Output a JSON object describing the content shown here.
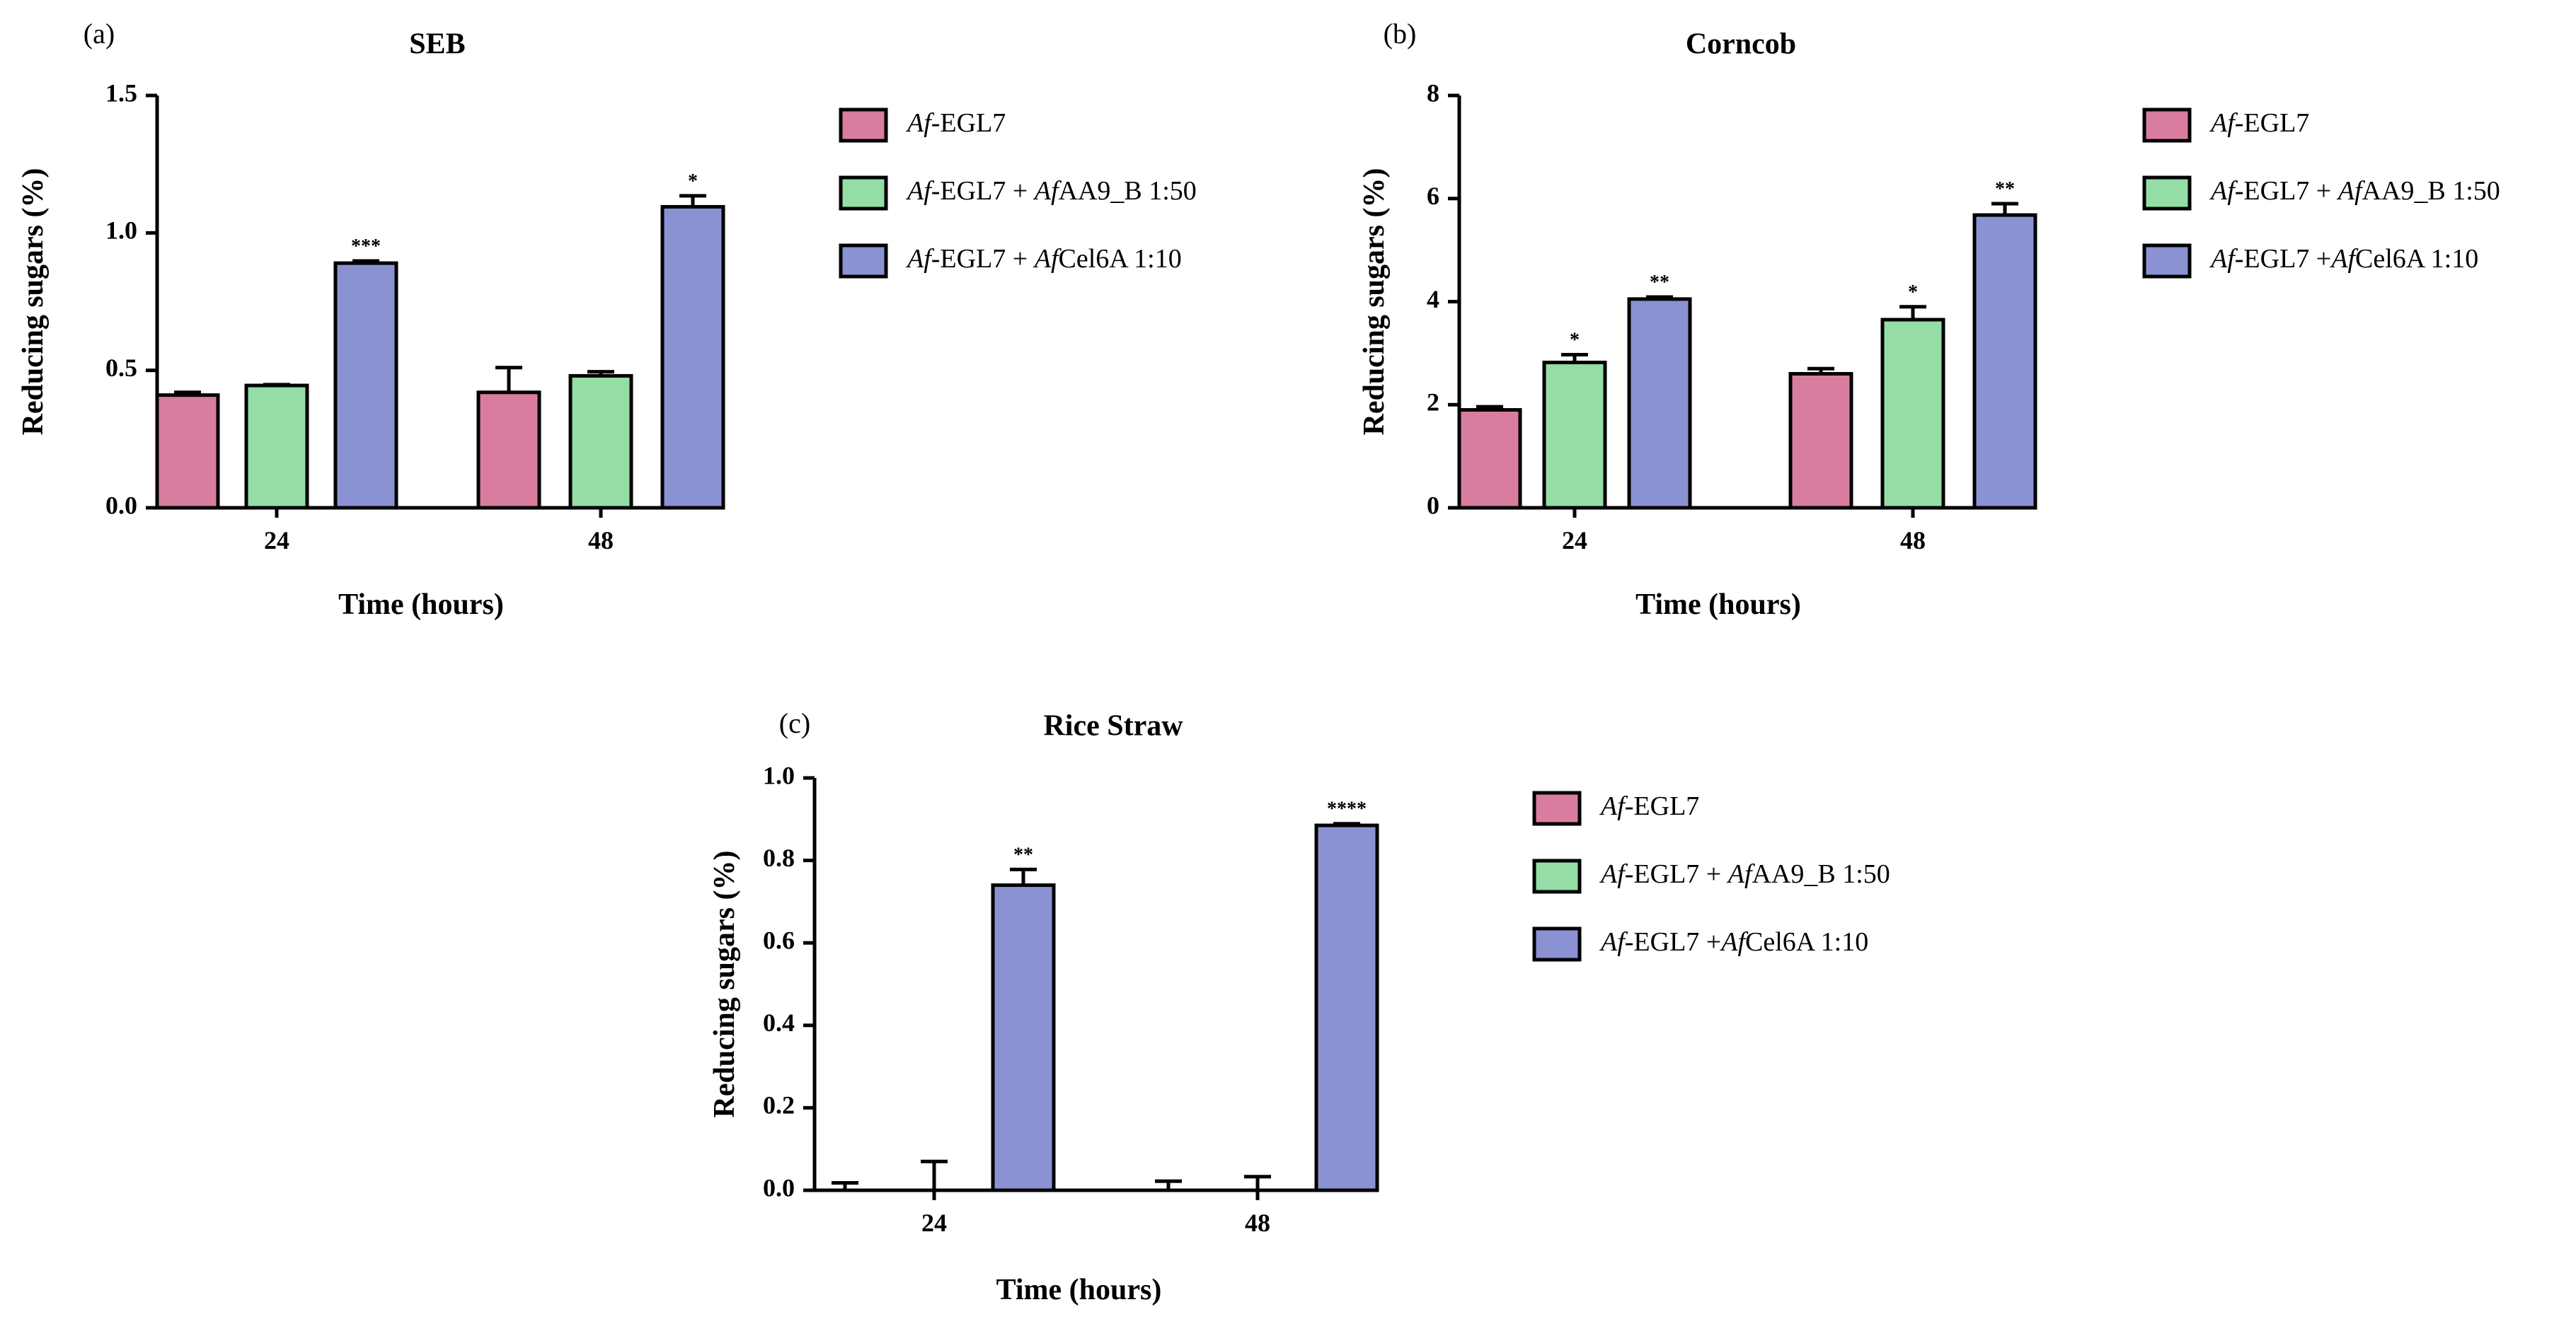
{
  "colors": {
    "egl7": "#D87D9F",
    "aa9": "#94DDA6",
    "cel6a": "#8A92D3",
    "axis": "#000000"
  },
  "chart_data": [
    {
      "panel": "(a)",
      "type": "bar",
      "title": "SEB",
      "xlabel": "Time (hours)",
      "ylabel": "Reducing sugars (%)",
      "categories": [
        "24",
        "48"
      ],
      "ylim": [
        0,
        1.5
      ],
      "yticks": [
        0.0,
        0.5,
        1.0,
        1.5
      ],
      "ytick_labels": [
        "0.0",
        "0.5",
        "1.0",
        "1.5"
      ],
      "series": [
        {
          "name": "Af-EGL7",
          "color_key": "egl7",
          "values": [
            0.41,
            0.42
          ],
          "errors": [
            0.01,
            0.09
          ],
          "sig": [
            "",
            ""
          ]
        },
        {
          "name": "Af-EGL7 + AfAA9_B 1:50",
          "color_key": "aa9",
          "values": [
            0.445,
            0.48
          ],
          "errors": [
            0.003,
            0.015
          ],
          "sig": [
            "",
            ""
          ]
        },
        {
          "name": "Af-EGL7 + AfCel6A 1:10",
          "color_key": "cel6a",
          "values": [
            0.89,
            1.095
          ],
          "errors": [
            0.008,
            0.04
          ],
          "sig": [
            "***",
            "*"
          ]
        }
      ],
      "legend": [
        {
          "italic": "Af",
          "text": "-EGL7"
        },
        {
          "italic": "Af",
          "text": "-EGL7 + ",
          "italic2": "Af",
          "text2": "AA9_B 1:50"
        },
        {
          "italic": "Af",
          "text": "-EGL7 + ",
          "italic2": "Af",
          "text2": "Cel6A 1:10"
        }
      ]
    },
    {
      "panel": "(b)",
      "type": "bar",
      "title": "Corncob",
      "xlabel": "Time (hours)",
      "ylabel": "Reducing sugars (%)",
      "categories": [
        "24",
        "48"
      ],
      "ylim": [
        0,
        8
      ],
      "yticks": [
        0,
        2,
        4,
        6,
        8
      ],
      "ytick_labels": [
        "0",
        "2",
        "4",
        "6",
        "8"
      ],
      "series": [
        {
          "name": "Af-EGL7",
          "color_key": "egl7",
          "values": [
            1.9,
            2.6
          ],
          "errors": [
            0.06,
            0.1
          ],
          "sig": [
            "",
            ""
          ]
        },
        {
          "name": "Af-EGL7 + AfAA9_B 1:50",
          "color_key": "aa9",
          "values": [
            2.82,
            3.65
          ],
          "errors": [
            0.15,
            0.25
          ],
          "sig": [
            "*",
            "*"
          ]
        },
        {
          "name": "Af-EGL7 +AfCel6A 1:10",
          "color_key": "cel6a",
          "values": [
            4.05,
            5.68
          ],
          "errors": [
            0.04,
            0.22
          ],
          "sig": [
            "**",
            "**"
          ]
        }
      ],
      "legend": [
        {
          "italic": "Af",
          "text": "-EGL7"
        },
        {
          "italic": "Af",
          "text": "-EGL7 + ",
          "italic2": "Af",
          "text2": "AA9_B 1:50"
        },
        {
          "italic": "Af",
          "text": "-EGL7 +",
          "italic2": "Af",
          "text2": "Cel6A 1:10"
        }
      ]
    },
    {
      "panel": "(c)",
      "type": "bar",
      "title": "Rice Straw",
      "xlabel": "Time (hours)",
      "ylabel": "Reducing sugars (%)",
      "categories": [
        "24",
        "48"
      ],
      "ylim": [
        0,
        1.0
      ],
      "yticks": [
        0.0,
        0.2,
        0.4,
        0.6,
        0.8,
        1.0
      ],
      "ytick_labels": [
        "0.0",
        "0.2",
        "0.4",
        "0.6",
        "0.8",
        "1.0"
      ],
      "series": [
        {
          "name": "Af-EGL7",
          "color_key": "egl7",
          "values": [
            0.0,
            0.0
          ],
          "errors": [
            0.018,
            0.022
          ],
          "sig": [
            "",
            ""
          ]
        },
        {
          "name": "Af-EGL7 + AfAA9_B 1:50",
          "color_key": "aa9",
          "values": [
            0.0,
            0.0
          ],
          "errors": [
            0.07,
            0.033
          ],
          "sig": [
            "",
            ""
          ]
        },
        {
          "name": "Af-EGL7 +AfCel6A 1:10",
          "color_key": "cel6a",
          "values": [
            0.74,
            0.885
          ],
          "errors": [
            0.038,
            0.004
          ],
          "sig": [
            "**",
            "****"
          ]
        }
      ],
      "legend": [
        {
          "italic": "Af",
          "text": "-EGL7"
        },
        {
          "italic": "Af",
          "text": "-EGL7 + ",
          "italic2": "Af",
          "text2": "AA9_B 1:50"
        },
        {
          "italic": "Af",
          "text": "-EGL7 +",
          "italic2": "Af",
          "text2": "Cel6A 1:10"
        }
      ]
    }
  ]
}
